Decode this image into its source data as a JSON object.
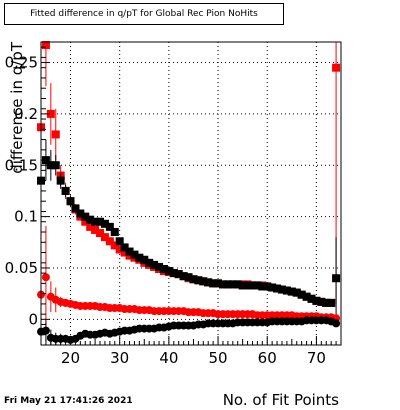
{
  "title": "Fitted difference in q/pT for Global Rec Pion NoHits",
  "timestamp": "Fri May 21 17:41:26 2021",
  "chart_data": {
    "type": "scatter",
    "xlabel": "No. of Fit Points",
    "ylabel": "difference in q/pT",
    "xlim": [
      14,
      75
    ],
    "ylim": [
      -0.025,
      0.27
    ],
    "xticks": [
      20,
      30,
      40,
      50,
      60,
      70
    ],
    "yticks": [
      0,
      0.05,
      0.1,
      0.15,
      0.2,
      0.25
    ],
    "ytick_labels": [
      "0",
      "0.05",
      "0.1",
      "0.15",
      "0.2",
      "0.25"
    ],
    "grid": true,
    "colors": {
      "red": "#ff0000",
      "black": "#000000"
    },
    "series": [
      {
        "marker": "square",
        "color": "#ff0000",
        "x": [
          14,
          15,
          16,
          17,
          18,
          19,
          20,
          21,
          22,
          23,
          24,
          25,
          26,
          27,
          28,
          29,
          30,
          31,
          32,
          33,
          34,
          35,
          36,
          37,
          38,
          39,
          40,
          41,
          42,
          43,
          44,
          45,
          46,
          47,
          48,
          49,
          50,
          51,
          52,
          53,
          54,
          55,
          56,
          57,
          58,
          59,
          60,
          61,
          62,
          63,
          64,
          65,
          66,
          67,
          68,
          69,
          70,
          71,
          72,
          73,
          74
        ],
        "y": [
          0.187,
          0.267,
          0.2,
          0.18,
          0.14,
          0.125,
          0.115,
          0.107,
          0.1,
          0.095,
          0.09,
          0.087,
          0.084,
          0.08,
          0.076,
          0.072,
          0.068,
          0.065,
          0.062,
          0.06,
          0.058,
          0.055,
          0.053,
          0.051,
          0.049,
          0.047,
          0.046,
          0.045,
          0.044,
          0.042,
          0.04,
          0.039,
          0.038,
          0.037,
          0.036,
          0.035,
          0.035,
          0.034,
          0.034,
          0.034,
          0.034,
          0.034,
          0.034,
          0.033,
          0.033,
          0.033,
          0.032,
          0.031,
          0.03,
          0.029,
          0.028,
          0.027,
          0.026,
          0.024,
          0.022,
          0.02,
          0.018,
          0.017,
          0.016,
          0.016,
          0.245
        ],
        "err": [
          0.03,
          0.04,
          0.03,
          0.025,
          0.01,
          0.008,
          0.006,
          0.005,
          0.004,
          0.003,
          0.003,
          0.003,
          0.002,
          0.002,
          0.002,
          0.002,
          0.002,
          0.002,
          0.002,
          0.002,
          0.002,
          0.002,
          0.002,
          0.002,
          0.002,
          0.002,
          0.002,
          0.002,
          0.002,
          0.002,
          0.002,
          0.002,
          0.002,
          0.002,
          0.002,
          0.002,
          0.002,
          0.002,
          0.002,
          0.002,
          0.002,
          0.002,
          0.002,
          0.002,
          0.002,
          0.002,
          0.002,
          0.002,
          0.002,
          0.002,
          0.002,
          0.002,
          0.002,
          0.002,
          0.002,
          0.002,
          0.002,
          0.002,
          0.002,
          0.003,
          0.23
        ]
      },
      {
        "marker": "square",
        "color": "#000000",
        "x": [
          14,
          15,
          16,
          17,
          18,
          19,
          20,
          21,
          22,
          23,
          24,
          25,
          26,
          27,
          28,
          29,
          30,
          31,
          32,
          33,
          34,
          35,
          36,
          37,
          38,
          39,
          40,
          41,
          42,
          43,
          44,
          45,
          46,
          47,
          48,
          49,
          50,
          51,
          52,
          53,
          54,
          55,
          56,
          57,
          58,
          59,
          60,
          61,
          62,
          63,
          64,
          65,
          66,
          67,
          68,
          69,
          70,
          71,
          72,
          73,
          74
        ],
        "y": [
          0.135,
          0.155,
          0.15,
          0.15,
          0.135,
          0.125,
          0.115,
          0.108,
          0.103,
          0.1,
          0.097,
          0.095,
          0.095,
          0.093,
          0.09,
          0.085,
          0.076,
          0.07,
          0.066,
          0.063,
          0.06,
          0.058,
          0.055,
          0.053,
          0.051,
          0.049,
          0.047,
          0.045,
          0.044,
          0.042,
          0.041,
          0.039,
          0.038,
          0.037,
          0.036,
          0.035,
          0.035,
          0.034,
          0.034,
          0.034,
          0.034,
          0.033,
          0.033,
          0.033,
          0.033,
          0.032,
          0.032,
          0.031,
          0.03,
          0.029,
          0.028,
          0.027,
          0.026,
          0.024,
          0.022,
          0.02,
          0.018,
          0.017,
          0.016,
          0.016,
          0.04
        ],
        "err": [
          0.02,
          0.02,
          0.015,
          0.01,
          0.008,
          0.006,
          0.005,
          0.004,
          0.003,
          0.003,
          0.003,
          0.002,
          0.002,
          0.002,
          0.002,
          0.002,
          0.002,
          0.002,
          0.002,
          0.002,
          0.002,
          0.002,
          0.002,
          0.002,
          0.002,
          0.002,
          0.002,
          0.002,
          0.002,
          0.002,
          0.002,
          0.002,
          0.002,
          0.002,
          0.002,
          0.002,
          0.002,
          0.002,
          0.002,
          0.002,
          0.002,
          0.002,
          0.002,
          0.002,
          0.002,
          0.002,
          0.002,
          0.002,
          0.002,
          0.002,
          0.002,
          0.002,
          0.002,
          0.002,
          0.002,
          0.002,
          0.002,
          0.002,
          0.002,
          0.002,
          0.04
        ]
      },
      {
        "marker": "circle",
        "color": "#ff0000",
        "x": [
          14,
          15,
          16,
          17,
          18,
          19,
          20,
          21,
          22,
          23,
          24,
          25,
          26,
          27,
          28,
          29,
          30,
          31,
          32,
          33,
          34,
          35,
          36,
          37,
          38,
          39,
          40,
          41,
          42,
          43,
          44,
          45,
          46,
          47,
          48,
          49,
          50,
          51,
          52,
          53,
          54,
          55,
          56,
          57,
          58,
          59,
          60,
          61,
          62,
          63,
          64,
          65,
          66,
          67,
          68,
          69,
          70,
          71,
          72,
          73,
          74
        ],
        "y": [
          0.024,
          0.041,
          0.022,
          0.019,
          0.017,
          0.016,
          0.015,
          0.014,
          0.013,
          0.013,
          0.013,
          0.013,
          0.012,
          0.012,
          0.011,
          0.011,
          0.011,
          0.01,
          0.01,
          0.01,
          0.009,
          0.009,
          0.009,
          0.008,
          0.008,
          0.008,
          0.008,
          0.008,
          0.008,
          0.008,
          0.007,
          0.007,
          0.007,
          0.006,
          0.006,
          0.006,
          0.005,
          0.005,
          0.005,
          0.005,
          0.005,
          0.005,
          0.005,
          0.005,
          0.004,
          0.004,
          0.004,
          0.004,
          0.004,
          0.004,
          0.004,
          0.004,
          0.003,
          0.003,
          0.003,
          0.003,
          0.003,
          0.002,
          0.002,
          0.002,
          0.001
        ],
        "err": [
          0.02,
          0.05,
          0.015,
          0.012,
          0.005,
          0.004,
          0.003,
          0.003,
          0.002,
          0.002,
          0.002,
          0.002,
          0.002,
          0.002,
          0.002,
          0.002,
          0.002,
          0.002,
          0.002,
          0.002,
          0.002,
          0.002,
          0.002,
          0.002,
          0.002,
          0.002,
          0.002,
          0.002,
          0.002,
          0.002,
          0.002,
          0.002,
          0.002,
          0.002,
          0.002,
          0.002,
          0.002,
          0.002,
          0.002,
          0.002,
          0.002,
          0.002,
          0.002,
          0.002,
          0.002,
          0.002,
          0.002,
          0.002,
          0.002,
          0.002,
          0.002,
          0.002,
          0.002,
          0.002,
          0.002,
          0.002,
          0.002,
          0.002,
          0.002,
          0.002,
          0.003
        ]
      },
      {
        "marker": "circle",
        "color": "#000000",
        "x": [
          14,
          15,
          16,
          17,
          18,
          19,
          20,
          21,
          22,
          23,
          24,
          25,
          26,
          27,
          28,
          29,
          30,
          31,
          32,
          33,
          34,
          35,
          36,
          37,
          38,
          39,
          40,
          41,
          42,
          43,
          44,
          45,
          46,
          47,
          48,
          49,
          50,
          51,
          52,
          53,
          54,
          55,
          56,
          57,
          58,
          59,
          60,
          61,
          62,
          63,
          64,
          65,
          66,
          67,
          68,
          69,
          70,
          71,
          72,
          73,
          74
        ],
        "y": [
          -0.012,
          -0.011,
          -0.018,
          -0.019,
          -0.019,
          -0.019,
          -0.02,
          -0.019,
          -0.016,
          -0.014,
          -0.015,
          -0.015,
          -0.014,
          -0.013,
          -0.014,
          -0.013,
          -0.012,
          -0.011,
          -0.011,
          -0.01,
          -0.009,
          -0.009,
          -0.009,
          -0.009,
          -0.008,
          -0.008,
          -0.007,
          -0.006,
          -0.006,
          -0.006,
          -0.006,
          -0.006,
          -0.005,
          -0.005,
          -0.004,
          -0.004,
          -0.004,
          -0.004,
          -0.004,
          -0.004,
          -0.003,
          -0.003,
          -0.003,
          -0.003,
          -0.003,
          -0.003,
          -0.003,
          -0.002,
          -0.002,
          -0.002,
          -0.002,
          -0.002,
          -0.002,
          -0.002,
          -0.001,
          -0.001,
          -0.001,
          -0.001,
          -0.001,
          -0.002,
          -0.004
        ],
        "err": [
          0.01,
          0.01,
          0.008,
          0.006,
          0.005,
          0.004,
          0.004,
          0.003,
          0.002,
          0.002,
          0.002,
          0.002,
          0.002,
          0.002,
          0.002,
          0.002,
          0.002,
          0.002,
          0.002,
          0.002,
          0.002,
          0.002,
          0.002,
          0.002,
          0.002,
          0.002,
          0.002,
          0.002,
          0.002,
          0.002,
          0.002,
          0.002,
          0.002,
          0.002,
          0.002,
          0.002,
          0.002,
          0.002,
          0.002,
          0.002,
          0.002,
          0.002,
          0.002,
          0.002,
          0.002,
          0.002,
          0.002,
          0.002,
          0.002,
          0.002,
          0.002,
          0.002,
          0.002,
          0.002,
          0.002,
          0.002,
          0.002,
          0.002,
          0.002,
          0.002,
          0.002
        ]
      }
    ]
  }
}
